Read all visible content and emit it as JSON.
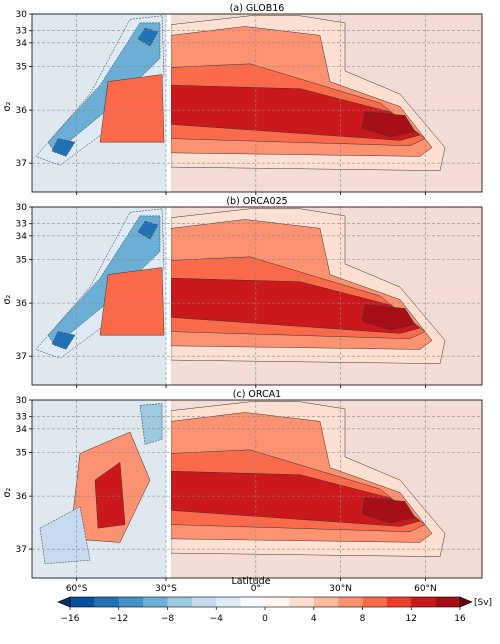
{
  "figure": {
    "xlabel": "Latitude",
    "ylabel": "σ₂",
    "colorbar_unit": "[Sv]"
  },
  "chart_data": [
    {
      "type": "heatmap",
      "title": "(a) GLOB16",
      "x_ticks": [
        "60°S",
        "30°S",
        "0°",
        "30°N",
        "60°N"
      ],
      "y_ticks": [
        "30",
        "33",
        "34",
        "35",
        "36",
        "37"
      ],
      "ylim": [
        30,
        37.4
      ],
      "grid": true,
      "regions": [
        {
          "name": "southern-negative-cell",
          "lat_range": [
            -75,
            -30
          ],
          "value": -12
        },
        {
          "name": "amoc-upper-cell",
          "lat_range": [
            -30,
            65
          ],
          "value": 14
        },
        {
          "name": "subpolar-maximum",
          "lat_range": [
            45,
            62
          ],
          "value": 16
        }
      ]
    },
    {
      "type": "heatmap",
      "title": "(b) ORCA025",
      "x_ticks": [
        "60°S",
        "30°S",
        "0°",
        "30°N",
        "60°N"
      ],
      "y_ticks": [
        "30",
        "33",
        "34",
        "35",
        "36",
        "37"
      ],
      "ylim": [
        30,
        37.4
      ],
      "grid": true,
      "regions": [
        {
          "name": "southern-negative-cell",
          "lat_range": [
            -75,
            -30
          ],
          "value": -12
        },
        {
          "name": "amoc-upper-cell",
          "lat_range": [
            -30,
            65
          ],
          "value": 14
        },
        {
          "name": "subpolar-maximum",
          "lat_range": [
            45,
            62
          ],
          "value": 16
        }
      ]
    },
    {
      "type": "heatmap",
      "title": "(c) ORCA1",
      "x_ticks": [
        "60°S",
        "30°S",
        "0°",
        "30°N",
        "60°N"
      ],
      "y_ticks": [
        "30",
        "33",
        "34",
        "35",
        "36",
        "37"
      ],
      "ylim": [
        30,
        37.4
      ],
      "grid": true,
      "regions": [
        {
          "name": "southern-positive-cell",
          "lat_range": [
            -60,
            -40
          ],
          "value": 14
        },
        {
          "name": "amoc-upper-cell",
          "lat_range": [
            -30,
            65
          ],
          "value": 12
        },
        {
          "name": "subpolar-maximum",
          "lat_range": [
            45,
            62
          ],
          "value": 14
        }
      ]
    }
  ],
  "colorbar": {
    "ticks": [
      "−16",
      "−12",
      "−8",
      "−4",
      "0",
      "4",
      "8",
      "12",
      "16"
    ],
    "range": [
      -16,
      16
    ],
    "colors": [
      "#08519c",
      "#2171b5",
      "#4292c6",
      "#6baed6",
      "#9ecae1",
      "#c6dbef",
      "#deebf7",
      "#f7fbff",
      "#fff5f0",
      "#fee0d2",
      "#fcbba1",
      "#fc9272",
      "#fb6a4a",
      "#ef3b2c",
      "#cb181d",
      "#a50f15"
    ]
  }
}
